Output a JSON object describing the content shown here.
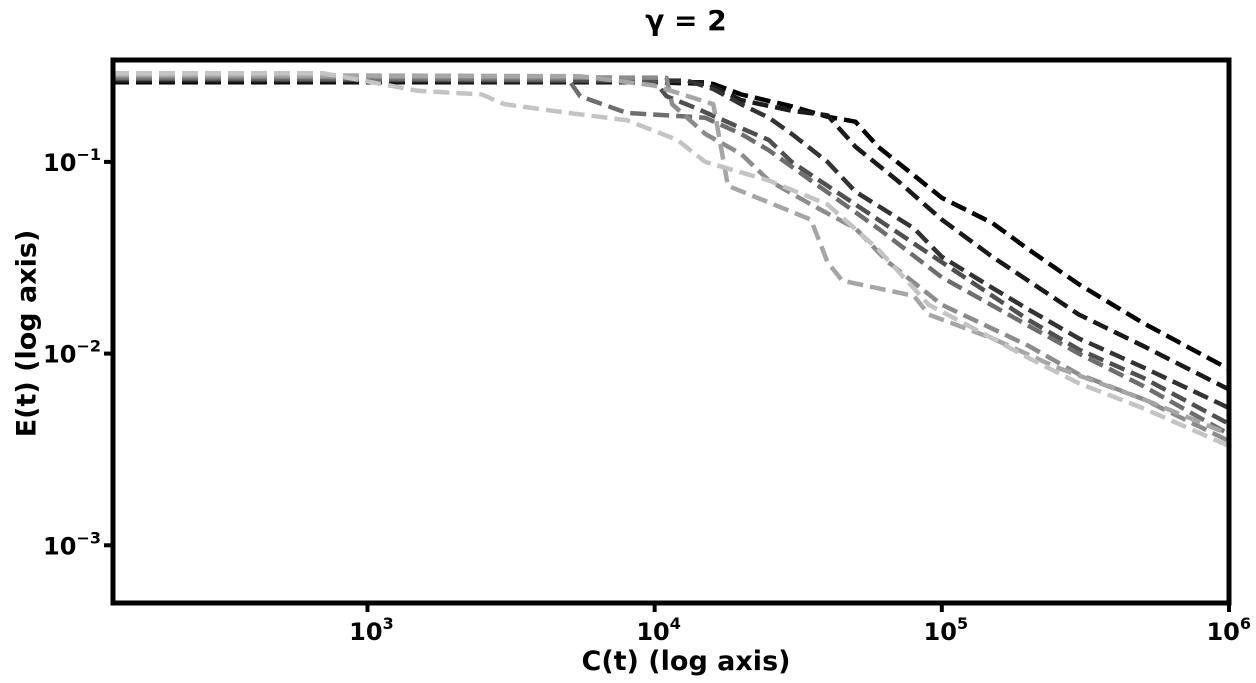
{
  "chart_data": {
    "type": "line",
    "title": "γ = 2",
    "xlabel": "C(t) (log axis)",
    "ylabel": "E(t) (log axis)",
    "xscale": "log",
    "yscale": "log",
    "xlim": [
      130,
      1000000
    ],
    "ylim": [
      0.0005,
      0.34
    ],
    "grid": false,
    "x_ticks": [
      {
        "value": 1000,
        "base": "10",
        "exp": "3"
      },
      {
        "value": 10000,
        "base": "10",
        "exp": "4"
      },
      {
        "value": 100000,
        "base": "10",
        "exp": "5"
      },
      {
        "value": 1000000,
        "base": "10",
        "exp": "6"
      }
    ],
    "y_ticks": [
      {
        "value": 0.1,
        "base": "10",
        "exp": "−1"
      },
      {
        "value": 0.01,
        "base": "10",
        "exp": "−2"
      },
      {
        "value": 0.001,
        "base": "10",
        "exp": "−3"
      }
    ],
    "series": [
      {
        "color": "#000000",
        "points": [
          [
            130,
            0.26
          ],
          [
            10000,
            0.26
          ],
          [
            16000,
            0.255
          ],
          [
            20000,
            0.225
          ],
          [
            30000,
            0.195
          ],
          [
            40000,
            0.172
          ],
          [
            50000,
            0.162
          ],
          [
            60000,
            0.12
          ],
          [
            80000,
            0.085
          ],
          [
            100000,
            0.065
          ],
          [
            150000,
            0.048
          ],
          [
            200000,
            0.035
          ],
          [
            300000,
            0.023
          ],
          [
            500000,
            0.0145
          ],
          [
            1000000,
            0.0083
          ]
        ]
      },
      {
        "color": "#1a1a1a",
        "points": [
          [
            130,
            0.265
          ],
          [
            15000,
            0.26
          ],
          [
            20000,
            0.21
          ],
          [
            30000,
            0.185
          ],
          [
            40000,
            0.175
          ],
          [
            50000,
            0.12
          ],
          [
            70000,
            0.08
          ],
          [
            100000,
            0.05
          ],
          [
            150000,
            0.032
          ],
          [
            200000,
            0.024
          ],
          [
            300000,
            0.016
          ],
          [
            500000,
            0.011
          ],
          [
            1000000,
            0.0065
          ]
        ]
      },
      {
        "color": "#333333",
        "points": [
          [
            130,
            0.27
          ],
          [
            13000,
            0.265
          ],
          [
            16000,
            0.24
          ],
          [
            20000,
            0.2
          ],
          [
            25000,
            0.17
          ],
          [
            30000,
            0.14
          ],
          [
            40000,
            0.1
          ],
          [
            50000,
            0.07
          ],
          [
            80000,
            0.045
          ],
          [
            100000,
            0.032
          ],
          [
            150000,
            0.022
          ],
          [
            200000,
            0.017
          ],
          [
            300000,
            0.012
          ],
          [
            500000,
            0.0085
          ],
          [
            1000000,
            0.0052
          ]
        ]
      },
      {
        "color": "#505050",
        "points": [
          [
            130,
            0.272
          ],
          [
            10000,
            0.265
          ],
          [
            11000,
            0.22
          ],
          [
            14000,
            0.19
          ],
          [
            20000,
            0.15
          ],
          [
            25000,
            0.13
          ],
          [
            30000,
            0.1
          ],
          [
            40000,
            0.075
          ],
          [
            60000,
            0.05
          ],
          [
            100000,
            0.03
          ],
          [
            150000,
            0.02
          ],
          [
            200000,
            0.015
          ],
          [
            300000,
            0.0105
          ],
          [
            500000,
            0.0075
          ],
          [
            1000000,
            0.0043
          ]
        ]
      },
      {
        "color": "#6e6e6e",
        "points": [
          [
            130,
            0.275
          ],
          [
            5000,
            0.27
          ],
          [
            5500,
            0.22
          ],
          [
            8000,
            0.18
          ],
          [
            15000,
            0.17
          ],
          [
            20000,
            0.14
          ],
          [
            25000,
            0.115
          ],
          [
            35000,
            0.08
          ],
          [
            60000,
            0.045
          ],
          [
            100000,
            0.025
          ],
          [
            200000,
            0.014
          ],
          [
            300000,
            0.01
          ],
          [
            500000,
            0.0068
          ],
          [
            1000000,
            0.0038
          ]
        ]
      },
      {
        "color": "#8c8c8c",
        "points": [
          [
            130,
            0.28
          ],
          [
            11000,
            0.275
          ],
          [
            11500,
            0.2
          ],
          [
            15000,
            0.14
          ],
          [
            20000,
            0.11
          ],
          [
            25000,
            0.08
          ],
          [
            35000,
            0.06
          ],
          [
            50000,
            0.045
          ],
          [
            65000,
            0.03
          ],
          [
            100000,
            0.018
          ],
          [
            200000,
            0.011
          ],
          [
            300000,
            0.0078
          ],
          [
            500000,
            0.0058
          ],
          [
            1000000,
            0.0035
          ]
        ]
      },
      {
        "color": "#a6a6a6",
        "points": [
          [
            130,
            0.285
          ],
          [
            5500,
            0.28
          ],
          [
            10000,
            0.25
          ],
          [
            16000,
            0.2
          ],
          [
            18000,
            0.075
          ],
          [
            35000,
            0.05
          ],
          [
            40000,
            0.03
          ],
          [
            45000,
            0.024
          ],
          [
            80000,
            0.02
          ],
          [
            90000,
            0.016
          ],
          [
            150000,
            0.012
          ],
          [
            250000,
            0.0085
          ],
          [
            500000,
            0.0058
          ],
          [
            1000000,
            0.0038
          ]
        ]
      },
      {
        "color": "#c4c4c4",
        "points": [
          [
            130,
            0.29
          ],
          [
            700,
            0.29
          ],
          [
            1500,
            0.235
          ],
          [
            2500,
            0.225
          ],
          [
            3000,
            0.2
          ],
          [
            5000,
            0.18
          ],
          [
            8000,
            0.165
          ],
          [
            10000,
            0.145
          ],
          [
            12000,
            0.13
          ],
          [
            15000,
            0.1
          ],
          [
            25000,
            0.08
          ],
          [
            40000,
            0.06
          ],
          [
            60000,
            0.035
          ],
          [
            90000,
            0.018
          ],
          [
            150000,
            0.012
          ],
          [
            200000,
            0.0095
          ],
          [
            300000,
            0.007
          ],
          [
            500000,
            0.0052
          ],
          [
            1000000,
            0.0033
          ]
        ]
      }
    ]
  }
}
